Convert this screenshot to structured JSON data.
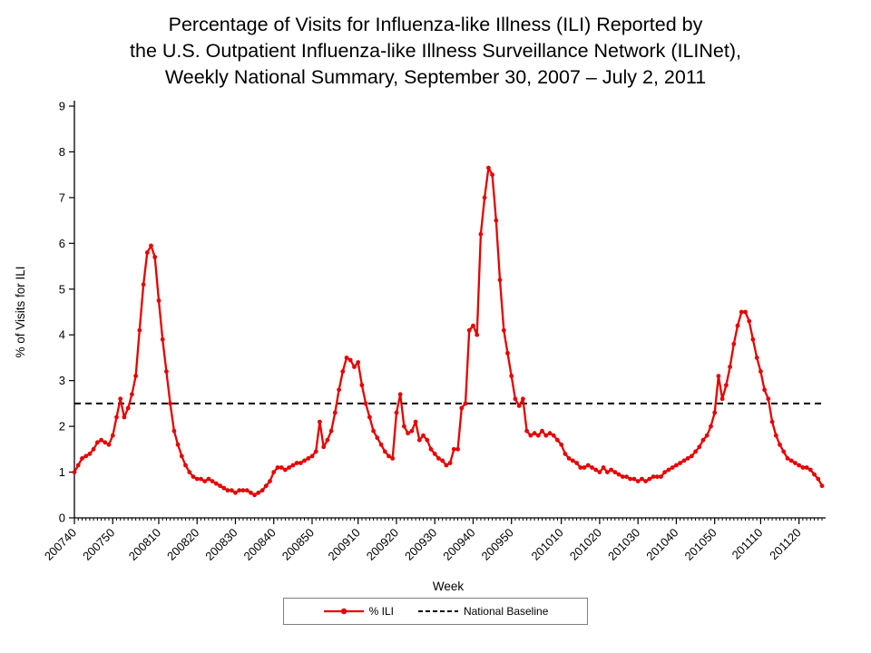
{
  "title": {
    "line1": "Percentage of Visits for Influenza-like Illness (ILI) Reported by",
    "line2": "the U.S. Outpatient Influenza-like Illness Surveillance Network (ILINet),",
    "line3": "Weekly National Summary, September 30, 2007 – July 2, 2011"
  },
  "chart_data": {
    "type": "line",
    "title": "Percentage of Visits for Influenza-like Illness (ILI) Reported by the U.S. Outpatient Influenza-like Illness Surveillance Network (ILINet), Weekly National Summary, September 30, 2007 – July 2, 2011",
    "xlabel": "Week",
    "ylabel": "% of Visits for ILI",
    "ylim": [
      0,
      9
    ],
    "y_ticks": [
      0,
      1,
      2,
      3,
      4,
      5,
      6,
      7,
      8,
      9
    ],
    "grid": false,
    "legend_position": "bottom",
    "x_tick_labels": [
      "200740",
      "200750",
      "200810",
      "200820",
      "200830",
      "200840",
      "200850",
      "200910",
      "200920",
      "200930",
      "200940",
      "200950",
      "201010",
      "201020",
      "201030",
      "201040",
      "201050",
      "201110",
      "201120"
    ],
    "weeks_spec": [
      {
        "year": 2007,
        "from": 40,
        "to": 52
      },
      {
        "year": 2008,
        "from": 1,
        "to": 52
      },
      {
        "year": 2009,
        "from": 1,
        "to": 53
      },
      {
        "year": 2010,
        "from": 1,
        "to": 52
      },
      {
        "year": 2011,
        "from": 1,
        "to": 26
      }
    ],
    "series": [
      {
        "name": "% ILI",
        "color": "#e60000",
        "marker": "circle",
        "values": [
          1.0,
          1.15,
          1.3,
          1.35,
          1.4,
          1.5,
          1.65,
          1.7,
          1.65,
          1.6,
          1.8,
          2.2,
          2.6,
          2.2,
          2.4,
          2.7,
          3.1,
          4.1,
          5.1,
          5.8,
          5.95,
          5.7,
          4.75,
          3.9,
          3.2,
          2.5,
          1.9,
          1.6,
          1.35,
          1.15,
          1.0,
          0.9,
          0.85,
          0.85,
          0.8,
          0.85,
          0.8,
          0.75,
          0.7,
          0.65,
          0.6,
          0.6,
          0.55,
          0.6,
          0.6,
          0.6,
          0.55,
          0.5,
          0.55,
          0.6,
          0.7,
          0.8,
          1.0,
          1.1,
          1.1,
          1.05,
          1.1,
          1.15,
          1.2,
          1.2,
          1.25,
          1.3,
          1.35,
          1.45,
          2.1,
          1.55,
          1.7,
          1.9,
          2.3,
          2.8,
          3.2,
          3.5,
          3.45,
          3.3,
          3.4,
          2.9,
          2.5,
          2.2,
          1.9,
          1.75,
          1.6,
          1.45,
          1.35,
          1.3,
          2.3,
          2.7,
          2.0,
          1.85,
          1.9,
          2.1,
          1.7,
          1.8,
          1.7,
          1.5,
          1.4,
          1.3,
          1.25,
          1.15,
          1.2,
          1.5,
          1.5,
          2.4,
          2.5,
          4.1,
          4.2,
          4.0,
          6.2,
          7.0,
          7.65,
          7.5,
          6.5,
          5.2,
          4.1,
          3.6,
          3.1,
          2.6,
          2.45,
          2.6,
          1.9,
          1.8,
          1.85,
          1.8,
          1.9,
          1.8,
          1.85,
          1.8,
          1.7,
          1.6,
          1.4,
          1.3,
          1.25,
          1.2,
          1.1,
          1.1,
          1.15,
          1.1,
          1.05,
          1.0,
          1.1,
          1.0,
          1.05,
          1.0,
          0.95,
          0.9,
          0.9,
          0.85,
          0.85,
          0.8,
          0.85,
          0.8,
          0.85,
          0.9,
          0.9,
          0.9,
          1.0,
          1.05,
          1.1,
          1.15,
          1.2,
          1.25,
          1.3,
          1.35,
          1.45,
          1.55,
          1.7,
          1.8,
          2.0,
          2.3,
          3.1,
          2.6,
          2.9,
          3.3,
          3.8,
          4.2,
          4.5,
          4.5,
          4.3,
          3.9,
          3.5,
          3.2,
          2.8,
          2.6,
          2.1,
          1.8,
          1.6,
          1.45,
          1.3,
          1.25,
          1.2,
          1.15,
          1.1,
          1.1,
          1.05,
          0.95,
          0.85,
          0.7
        ]
      }
    ],
    "baseline": {
      "name": "National Baseline",
      "value": 2.5,
      "color": "#000000",
      "style": "dashed"
    }
  }
}
